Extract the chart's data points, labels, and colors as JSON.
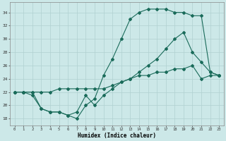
{
  "xlabel": "Humidex (Indice chaleur)",
  "bg_color": "#cce8e8",
  "grid_color": "#b0d0d0",
  "line_color": "#1a6b5a",
  "line1_x": [
    0,
    1,
    2,
    3,
    4,
    5,
    6,
    7,
    8,
    9,
    10,
    11,
    12,
    13,
    14,
    15,
    16,
    17,
    18,
    19,
    20,
    21,
    22,
    23
  ],
  "line1_y": [
    22,
    22,
    22,
    19.5,
    19,
    19,
    18.5,
    18,
    20,
    21,
    24.5,
    27,
    30,
    33,
    34,
    34.5,
    34.5,
    34.5,
    34,
    34,
    33.5,
    33.5,
    25,
    24.5
  ],
  "line2_x": [
    0,
    1,
    2,
    3,
    4,
    5,
    6,
    7,
    8,
    9,
    10,
    11,
    12,
    13,
    14,
    15,
    16,
    17,
    18,
    19,
    20,
    21,
    22,
    23
  ],
  "line2_y": [
    22,
    22,
    21.5,
    19.5,
    19,
    19,
    18.5,
    19,
    21.5,
    20,
    21.5,
    22.5,
    23.5,
    24,
    25,
    26,
    27,
    28.5,
    30,
    31,
    28,
    26.5,
    25,
    24.5
  ],
  "line3_x": [
    0,
    1,
    2,
    3,
    4,
    5,
    6,
    7,
    8,
    9,
    10,
    11,
    12,
    13,
    14,
    15,
    16,
    17,
    18,
    19,
    20,
    21,
    22,
    23
  ],
  "line3_y": [
    22,
    22,
    22,
    22,
    22,
    22.5,
    22.5,
    22.5,
    22.5,
    22.5,
    22.5,
    23,
    23.5,
    24,
    24.5,
    24.5,
    25,
    25,
    25.5,
    25.5,
    26,
    24,
    24.5,
    24.5
  ],
  "xlim": [
    -0.5,
    23.5
  ],
  "ylim": [
    17,
    35.5
  ],
  "xticks": [
    0,
    1,
    2,
    3,
    4,
    5,
    6,
    7,
    8,
    9,
    10,
    11,
    12,
    13,
    14,
    15,
    16,
    17,
    18,
    19,
    20,
    21,
    22,
    23
  ],
  "yticks": [
    18,
    20,
    22,
    24,
    26,
    28,
    30,
    32,
    34
  ],
  "marker_size": 2.0,
  "line_width": 0.8
}
